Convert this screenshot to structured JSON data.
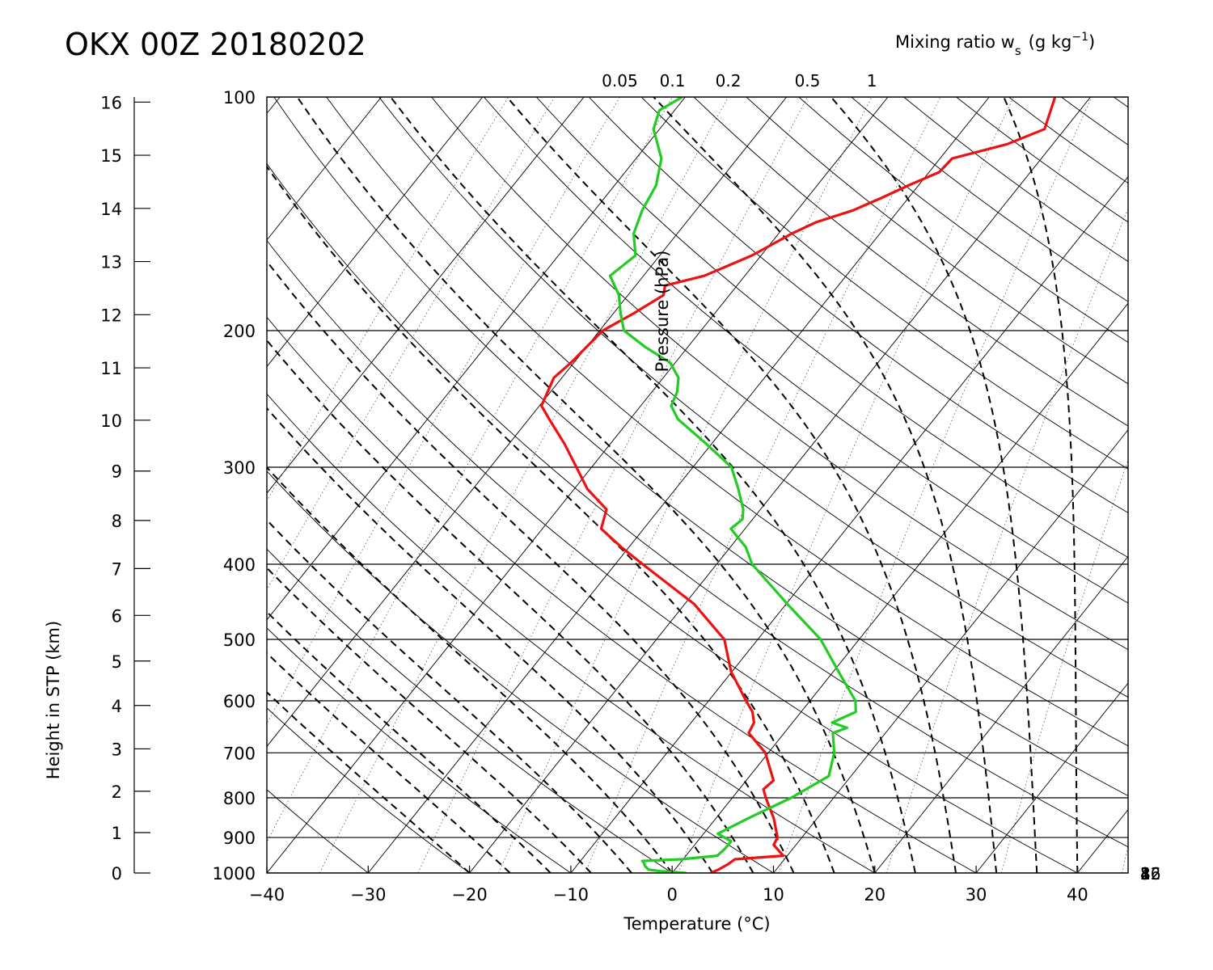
{
  "chart_data": {
    "type": "line",
    "title": "OKX 00Z 20180202",
    "xlabel": "Temperature (°C)",
    "ylabel": "Pressure (hPa)",
    "y2label": "Height in STP (km)",
    "mixing_ratio_label": "Mixing ratio w",
    "mixing_ratio_sub": "s",
    "mixing_ratio_units": "(g kg",
    "mixing_ratio_units_sup": "−1",
    "mixing_ratio_units_close": ")",
    "xlim": [
      -40,
      45
    ],
    "ylim": [
      1000,
      100
    ],
    "x_ticks": [
      -40,
      -30,
      -20,
      -10,
      0,
      10,
      20,
      30,
      40
    ],
    "x_tick_labels": [
      "−40",
      "−30",
      "−20",
      "−10",
      "0",
      "10",
      "20",
      "30",
      "40"
    ],
    "pressure_ticks": [
      {
        "p": 100,
        "label": "100"
      },
      {
        "p": 200,
        "label": "200"
      },
      {
        "p": 300,
        "label": "300"
      },
      {
        "p": 400,
        "label": "400"
      },
      {
        "p": 500,
        "label": "500"
      },
      {
        "p": 600,
        "label": "600"
      },
      {
        "p": 700,
        "label": "700"
      },
      {
        "p": 800,
        "label": "800"
      },
      {
        "p": 900,
        "label": "900"
      },
      {
        "p": 1000,
        "label": "1000"
      }
    ],
    "height_ticks": [
      {
        "km": 0,
        "label": "0"
      },
      {
        "km": 1,
        "label": "1"
      },
      {
        "km": 2,
        "label": "2"
      },
      {
        "km": 3,
        "label": "3"
      },
      {
        "km": 4,
        "label": "4"
      },
      {
        "km": 5,
        "label": "5"
      },
      {
        "km": 6,
        "label": "6"
      },
      {
        "km": 7,
        "label": "7"
      },
      {
        "km": 8,
        "label": "8"
      },
      {
        "km": 9,
        "label": "9"
      },
      {
        "km": 10,
        "label": "10"
      },
      {
        "km": 11,
        "label": "11"
      },
      {
        "km": 12,
        "label": "12"
      },
      {
        "km": 13,
        "label": "13"
      },
      {
        "km": 14,
        "label": "14"
      },
      {
        "km": 15,
        "label": "15"
      },
      {
        "km": 16,
        "label": "16"
      }
    ],
    "mixing_ratio_top_labels": [
      {
        "w": 0.05,
        "label": "0.05"
      },
      {
        "w": 0.1,
        "label": "0.1"
      },
      {
        "w": 0.2,
        "label": "0.2"
      },
      {
        "w": 0.5,
        "label": "0.5"
      },
      {
        "w": 1,
        "label": "1"
      }
    ],
    "mixing_ratio_right_labels": [
      {
        "w": 2,
        "label": "2"
      },
      {
        "w": 4,
        "label": "4"
      },
      {
        "w": 8,
        "label": "8"
      },
      {
        "w": 16,
        "label": "16"
      },
      {
        "w": 32,
        "label": "32"
      }
    ],
    "series": [
      {
        "color": "#ee1111",
        "points": [
          [
            1000,
            3.8
          ],
          [
            990,
            4.3
          ],
          [
            975,
            4.8
          ],
          [
            960,
            5.1
          ],
          [
            950,
            9.6
          ],
          [
            940,
            9.0
          ],
          [
            920,
            7.8
          ],
          [
            900,
            7.6
          ],
          [
            850,
            5.7
          ],
          [
            800,
            3.3
          ],
          [
            780,
            2.4
          ],
          [
            760,
            2.7
          ],
          [
            700,
            -0.3
          ],
          [
            660,
            -3.5
          ],
          [
            640,
            -3.8
          ],
          [
            620,
            -4.8
          ],
          [
            600,
            -6.3
          ],
          [
            550,
            -10.1
          ],
          [
            500,
            -13.3
          ],
          [
            450,
            -19.1
          ],
          [
            400,
            -27.3
          ],
          [
            380,
            -30.8
          ],
          [
            360,
            -34.2
          ],
          [
            340,
            -35.2
          ],
          [
            320,
            -38.7
          ],
          [
            300,
            -41.5
          ],
          [
            280,
            -44.5
          ],
          [
            260,
            -48.0
          ],
          [
            250,
            -49.8
          ],
          [
            230,
            -50.8
          ],
          [
            220,
            -50.3
          ],
          [
            200,
            -49.7
          ],
          [
            190,
            -48.0
          ],
          [
            180,
            -46.5
          ],
          [
            175,
            -47.1
          ],
          [
            170,
            -44.0
          ],
          [
            160,
            -40.9
          ],
          [
            150,
            -38.7
          ],
          [
            145,
            -37.2
          ],
          [
            140,
            -34.5
          ],
          [
            135,
            -32.7
          ],
          [
            130,
            -31.0
          ],
          [
            125,
            -29.0
          ],
          [
            120,
            -28.8
          ],
          [
            115,
            -24.5
          ],
          [
            110,
            -22.0
          ],
          [
            100,
            -23.5
          ]
        ]
      },
      {
        "color": "#22cc22",
        "points": [
          [
            1000,
            1.4
          ],
          [
            995,
            -1.2
          ],
          [
            990,
            -2.6
          ],
          [
            980,
            -3.2
          ],
          [
            970,
            -3.6
          ],
          [
            965,
            -3.9
          ],
          [
            960,
            -0.2
          ],
          [
            950,
            3.1
          ],
          [
            930,
            3.3
          ],
          [
            910,
            3.3
          ],
          [
            890,
            1.4
          ],
          [
            850,
            3.2
          ],
          [
            800,
            5.8
          ],
          [
            750,
            7.8
          ],
          [
            700,
            6.5
          ],
          [
            660,
            4.8
          ],
          [
            650,
            5.8
          ],
          [
            640,
            3.9
          ],
          [
            620,
            5.4
          ],
          [
            600,
            4.5
          ],
          [
            550,
            0.5
          ],
          [
            500,
            -3.8
          ],
          [
            450,
            -9.9
          ],
          [
            400,
            -16.5
          ],
          [
            380,
            -18.5
          ],
          [
            360,
            -21.4
          ],
          [
            350,
            -21.0
          ],
          [
            340,
            -21.7
          ],
          [
            320,
            -23.8
          ],
          [
            300,
            -26.2
          ],
          [
            280,
            -30.5
          ],
          [
            260,
            -35.3
          ],
          [
            250,
            -37.0
          ],
          [
            240,
            -37.5
          ],
          [
            230,
            -38.5
          ],
          [
            220,
            -40.5
          ],
          [
            210,
            -44.2
          ],
          [
            200,
            -47.6
          ],
          [
            190,
            -49.3
          ],
          [
            180,
            -50.9
          ],
          [
            170,
            -53.3
          ],
          [
            160,
            -52.4
          ],
          [
            150,
            -54.3
          ],
          [
            140,
            -55.3
          ],
          [
            130,
            -55.9
          ],
          [
            120,
            -57.5
          ],
          [
            110,
            -60.6
          ],
          [
            104,
            -61.5
          ],
          [
            100,
            -60.3
          ]
        ]
      }
    ]
  }
}
